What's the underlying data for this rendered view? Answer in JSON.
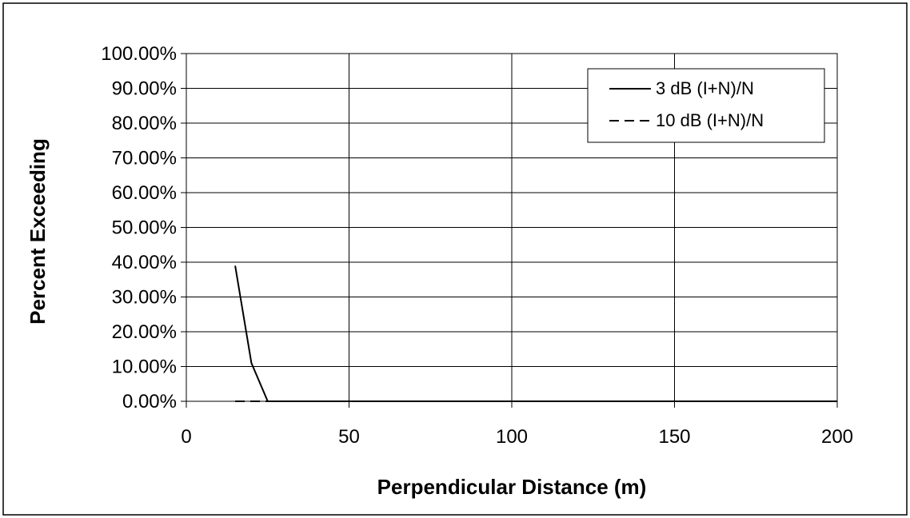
{
  "chart_data": {
    "type": "line",
    "title": "",
    "xlabel": "Perpendicular Distance (m)",
    "ylabel": "Percent Exceeding",
    "xlim": [
      0,
      200
    ],
    "ylim": [
      0,
      1
    ],
    "x_ticks": [
      "0",
      "50",
      "100",
      "150",
      "200"
    ],
    "y_ticks": [
      "0.00%",
      "10.00%",
      "20.00%",
      "30.00%",
      "40.00%",
      "50.00%",
      "60.00%",
      "70.00%",
      "80.00%",
      "90.00%",
      "100.00%"
    ],
    "grid": true,
    "legend_position": "top-right",
    "series": [
      {
        "name": "3 dB (I+N)/N",
        "style": "solid",
        "color": "#000000",
        "x": [
          15,
          20,
          25,
          30,
          40,
          50,
          75,
          100,
          150,
          200
        ],
        "y": [
          0.39,
          0.11,
          0.0,
          0.0,
          0.0,
          0.0,
          0.0,
          0.0,
          0.0,
          0.0
        ]
      },
      {
        "name": "10 dB (I+N)/N",
        "style": "dashed",
        "color": "#000000",
        "x": [
          15,
          20,
          25,
          30,
          40,
          50,
          75,
          100,
          150,
          200
        ],
        "y": [
          0.0,
          0.0,
          0.0,
          0.0,
          0.0,
          0.0,
          0.0,
          0.0,
          0.0,
          0.0
        ]
      }
    ]
  }
}
